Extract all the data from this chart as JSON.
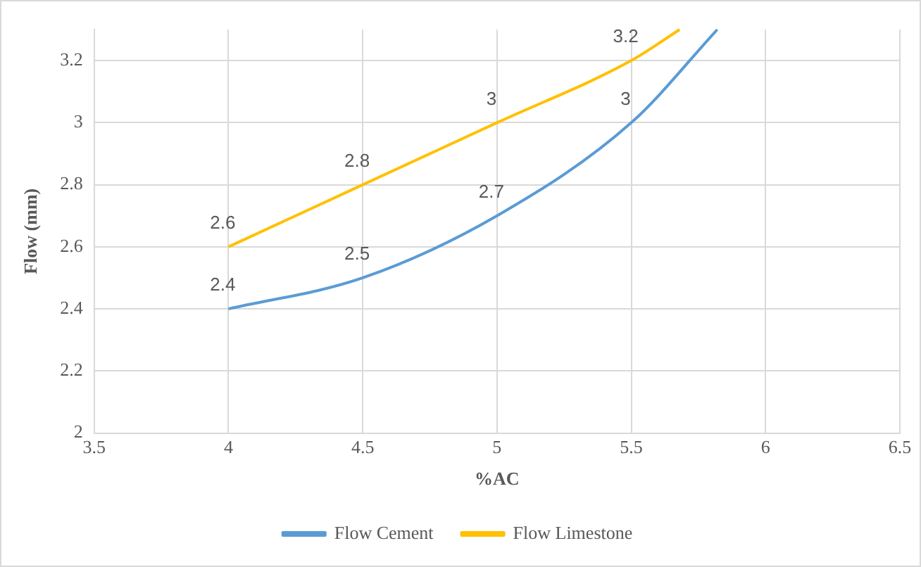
{
  "chart_data": {
    "type": "line",
    "xlabel": "%AC",
    "ylabel": "Flow (mm)",
    "xlim": [
      3.5,
      6.5
    ],
    "xticks": [
      3.5,
      4,
      4.5,
      5,
      5.5,
      6,
      6.5
    ],
    "ylim": [
      2,
      3.3
    ],
    "yticks": [
      2,
      2.2,
      2.4,
      2.6,
      2.8,
      3,
      3.2
    ],
    "grid": true,
    "legend": "bottom",
    "marker": "none",
    "line_style": "solid",
    "series": [
      {
        "name": "Flow Cement",
        "color": "#5b9bd5",
        "x": [
          4,
          4.5,
          5,
          5.5,
          5.82
        ],
        "values": [
          2.4,
          2.5,
          2.7,
          3,
          3.3
        ],
        "value_labels": [
          "2.4",
          "2.5",
          "2.7",
          "3",
          null
        ]
      },
      {
        "name": "Flow Limestone",
        "color": "#ffc000",
        "x": [
          4,
          4.5,
          5,
          5.5,
          5.68
        ],
        "values": [
          2.6,
          2.8,
          3,
          3.2,
          3.3
        ],
        "value_labels": [
          "2.6",
          "2.8",
          "3",
          "3.2",
          null
        ]
      }
    ]
  }
}
